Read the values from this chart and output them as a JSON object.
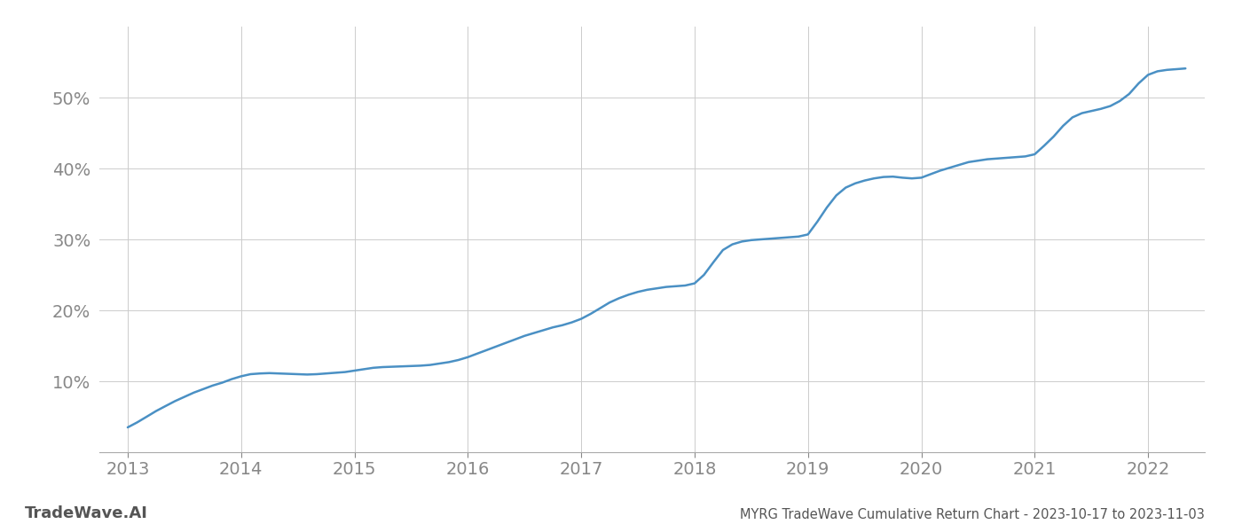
{
  "title": "MYRG TradeWave Cumulative Return Chart - 2023-10-17 to 2023-11-03",
  "watermark": "TradeWave.AI",
  "line_color": "#4a90c4",
  "background_color": "#ffffff",
  "grid_color": "#cccccc",
  "x_years": [
    2013,
    2014,
    2015,
    2016,
    2017,
    2018,
    2019,
    2020,
    2021,
    2022
  ],
  "x_data": [
    2013.0,
    2013.083,
    2013.167,
    2013.25,
    2013.333,
    2013.417,
    2013.5,
    2013.583,
    2013.667,
    2013.75,
    2013.833,
    2013.917,
    2014.0,
    2014.083,
    2014.167,
    2014.25,
    2014.333,
    2014.417,
    2014.5,
    2014.583,
    2014.667,
    2014.75,
    2014.833,
    2014.917,
    2015.0,
    2015.083,
    2015.167,
    2015.25,
    2015.333,
    2015.417,
    2015.5,
    2015.583,
    2015.667,
    2015.75,
    2015.833,
    2015.917,
    2016.0,
    2016.083,
    2016.167,
    2016.25,
    2016.333,
    2016.417,
    2016.5,
    2016.583,
    2016.667,
    2016.75,
    2016.833,
    2016.917,
    2017.0,
    2017.083,
    2017.167,
    2017.25,
    2017.333,
    2017.417,
    2017.5,
    2017.583,
    2017.667,
    2017.75,
    2017.833,
    2017.917,
    2018.0,
    2018.083,
    2018.167,
    2018.25,
    2018.333,
    2018.417,
    2018.5,
    2018.583,
    2018.667,
    2018.75,
    2018.833,
    2018.917,
    2019.0,
    2019.083,
    2019.167,
    2019.25,
    2019.333,
    2019.417,
    2019.5,
    2019.583,
    2019.667,
    2019.75,
    2019.833,
    2019.917,
    2020.0,
    2020.083,
    2020.167,
    2020.25,
    2020.333,
    2020.417,
    2020.5,
    2020.583,
    2020.667,
    2020.75,
    2020.833,
    2020.917,
    2021.0,
    2021.083,
    2021.167,
    2021.25,
    2021.333,
    2021.417,
    2021.5,
    2021.583,
    2021.667,
    2021.75,
    2021.833,
    2021.917,
    2022.0,
    2022.083,
    2022.167,
    2022.25,
    2022.33
  ],
  "y_data": [
    3.5,
    4.2,
    5.0,
    5.8,
    6.5,
    7.2,
    7.8,
    8.4,
    8.9,
    9.4,
    9.8,
    10.3,
    10.7,
    11.0,
    11.1,
    11.15,
    11.1,
    11.05,
    11.0,
    10.95,
    11.0,
    11.1,
    11.2,
    11.3,
    11.5,
    11.7,
    11.9,
    12.0,
    12.05,
    12.1,
    12.15,
    12.2,
    12.3,
    12.5,
    12.7,
    13.0,
    13.4,
    13.9,
    14.4,
    14.9,
    15.4,
    15.9,
    16.4,
    16.8,
    17.2,
    17.6,
    17.9,
    18.3,
    18.8,
    19.5,
    20.3,
    21.1,
    21.7,
    22.2,
    22.6,
    22.9,
    23.1,
    23.3,
    23.4,
    23.5,
    23.8,
    25.0,
    26.8,
    28.5,
    29.3,
    29.7,
    29.9,
    30.0,
    30.1,
    30.2,
    30.3,
    30.4,
    30.7,
    32.5,
    34.5,
    36.2,
    37.3,
    37.9,
    38.3,
    38.6,
    38.8,
    38.85,
    38.7,
    38.6,
    38.7,
    39.2,
    39.7,
    40.1,
    40.5,
    40.9,
    41.1,
    41.3,
    41.4,
    41.5,
    41.6,
    41.7,
    42.0,
    43.2,
    44.5,
    46.0,
    47.2,
    47.8,
    48.1,
    48.4,
    48.8,
    49.5,
    50.5,
    52.0,
    53.2,
    53.7,
    53.9,
    54.0,
    54.1
  ],
  "ylim": [
    0,
    60
  ],
  "yticks": [
    10,
    20,
    30,
    40,
    50
  ],
  "xlim": [
    2012.75,
    2022.5
  ],
  "title_fontsize": 10.5,
  "tick_fontsize": 14,
  "watermark_fontsize": 13,
  "title_color": "#555555",
  "tick_color": "#888888",
  "line_width": 1.8,
  "spine_color": "#aaaaaa"
}
